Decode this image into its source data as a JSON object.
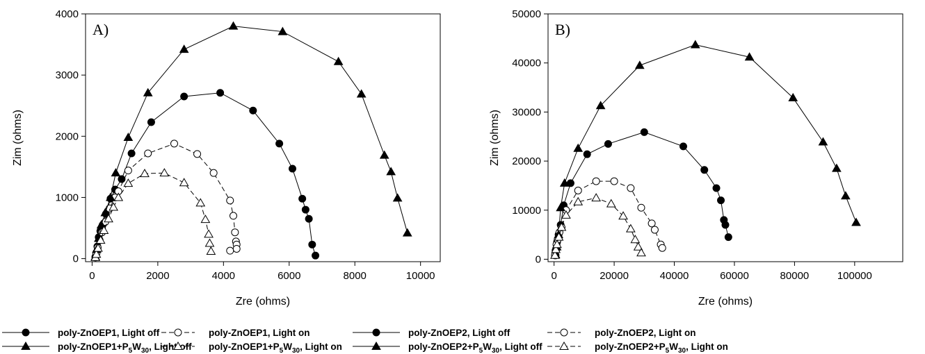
{
  "chart_data": [
    {
      "type": "line",
      "panel_label": "A)",
      "xlabel": "Zre (ohms)",
      "ylabel": "Zim (ohms)",
      "xlim": [
        -200,
        10600
      ],
      "ylim": [
        -50,
        4000
      ],
      "xticks": [
        0,
        2000,
        4000,
        6000,
        8000,
        10000
      ],
      "yticks": [
        0,
        1000,
        2000,
        3000,
        4000
      ],
      "grid": false,
      "series": [
        {
          "name": "poly-ZnOEP1, Light off",
          "marker": "circle",
          "filled": true,
          "dashed": false,
          "x": [
            100,
            130,
            160,
            200,
            250,
            320,
            420,
            560,
            700,
            900,
            1200,
            1800,
            2800,
            3900,
            4900,
            5700,
            6100,
            6400,
            6500,
            6600,
            6700,
            6800
          ],
          "y": [
            30,
            100,
            200,
            350,
            450,
            550,
            730,
            980,
            1130,
            1300,
            1720,
            2230,
            2650,
            2710,
            2420,
            1880,
            1470,
            980,
            800,
            650,
            230,
            50
          ]
        },
        {
          "name": "poly-ZnOEP1, Light on",
          "marker": "circle",
          "filled": false,
          "dashed": true,
          "x": [
            100,
            130,
            170,
            230,
            300,
            400,
            530,
            700,
            800,
            1100,
            1700,
            2500,
            3200,
            3700,
            4200,
            4300,
            4350,
            4380,
            4400,
            4400,
            4200
          ],
          "y": [
            20,
            80,
            180,
            300,
            430,
            600,
            820,
            1000,
            1100,
            1440,
            1720,
            1880,
            1710,
            1400,
            950,
            700,
            430,
            280,
            230,
            160,
            130
          ]
        },
        {
          "name": "poly-ZnOEP1+P5W30, Light off",
          "marker": "triangle",
          "filled": true,
          "dashed": false,
          "x": [
            100,
            140,
            200,
            280,
            400,
            560,
            720,
            1100,
            1700,
            2800,
            4300,
            5800,
            7500,
            8200,
            8900,
            9100,
            9300,
            9600
          ],
          "y": [
            30,
            150,
            330,
            550,
            750,
            1000,
            1400,
            1980,
            2710,
            3420,
            3800,
            3710,
            3220,
            2690,
            1690,
            1420,
            990,
            420
          ]
        },
        {
          "name": "poly-ZnOEP1+P5W30, Light on",
          "marker": "triangle",
          "filled": false,
          "dashed": true,
          "x": [
            100,
            130,
            180,
            260,
            360,
            500,
            650,
            800,
            1100,
            1600,
            2200,
            2800,
            3300,
            3450,
            3550,
            3580,
            3620
          ],
          "y": [
            20,
            70,
            170,
            300,
            460,
            650,
            840,
            1000,
            1230,
            1390,
            1400,
            1240,
            910,
            640,
            400,
            250,
            120
          ]
        }
      ]
    },
    {
      "type": "line",
      "panel_label": "B)",
      "xlabel": "Zre (ohms)",
      "ylabel": "Zim (ohms)",
      "xlim": [
        -2000,
        116000
      ],
      "ylim": [
        -500,
        50000
      ],
      "xticks": [
        0,
        20000,
        40000,
        60000,
        80000,
        100000
      ],
      "yticks": [
        0,
        10000,
        20000,
        30000,
        40000,
        50000
      ],
      "grid": false,
      "series": [
        {
          "name": "poly-ZnOEP2, Light off",
          "marker": "circle",
          "filled": true,
          "dashed": false,
          "x": [
            500,
            700,
            1000,
            1500,
            2200,
            3200,
            5500,
            11000,
            18000,
            30000,
            43000,
            50000,
            54000,
            55500,
            56500,
            57000,
            58000
          ],
          "y": [
            800,
            2000,
            3500,
            5000,
            7000,
            11000,
            15500,
            21400,
            23500,
            25900,
            23000,
            18200,
            14500,
            12000,
            8000,
            7000,
            4500
          ]
        },
        {
          "name": "poly-ZnOEP2, Light on",
          "marker": "circle",
          "filled": false,
          "dashed": true,
          "x": [
            300,
            500,
            800,
            1200,
            1800,
            2500,
            4000,
            8000,
            14000,
            20000,
            25500,
            29000,
            32500,
            33500,
            35500,
            36000
          ],
          "y": [
            800,
            1800,
            3000,
            4000,
            5500,
            6500,
            10000,
            14000,
            15900,
            15900,
            14500,
            10500,
            7300,
            6000,
            3000,
            2300
          ]
        },
        {
          "name": "poly-ZnOEP2+P5W30, Light off",
          "marker": "triangle",
          "filled": true,
          "dashed": false,
          "x": [
            500,
            900,
            1500,
            2200,
            3500,
            8000,
            15500,
            28500,
            47000,
            65000,
            79500,
            89500,
            94000,
            97000,
            100500
          ],
          "y": [
            900,
            2500,
            5000,
            10500,
            15500,
            22600,
            31300,
            39500,
            43700,
            41200,
            32900,
            23900,
            18500,
            12900,
            7500
          ]
        },
        {
          "name": "poly-ZnOEP2+P5W30, Light on",
          "marker": "triangle",
          "filled": false,
          "dashed": true,
          "x": [
            300,
            600,
            1000,
            1600,
            2500,
            4000,
            8000,
            14000,
            19000,
            23000,
            25500,
            27000,
            28000,
            29000
          ],
          "y": [
            800,
            2000,
            3000,
            4500,
            6500,
            9000,
            11700,
            12500,
            11300,
            8800,
            6200,
            4000,
            2500,
            1300
          ]
        }
      ]
    }
  ],
  "legend": {
    "groups": [
      {
        "items": [
          {
            "name": "poly-ZnOEP1, Light off",
            "marker": "circle",
            "filled": true,
            "dashed": false
          },
          {
            "prefix": "poly-ZnOEP1+P",
            "sub1": "5",
            "mid": "W",
            "sub2": "30",
            "suffix": ", Light off",
            "marker": "triangle",
            "filled": true,
            "dashed": false
          }
        ]
      },
      {
        "items": [
          {
            "name": "poly-ZnOEP1, Light on",
            "marker": "circle",
            "filled": false,
            "dashed": true
          },
          {
            "prefix": "poly-ZnOEP1+P",
            "sub1": "5",
            "mid": "W",
            "sub2": "30",
            "suffix": ", Light on",
            "marker": "triangle",
            "filled": false,
            "dashed": true
          }
        ]
      },
      {
        "items": [
          {
            "name": "poly-ZnOEP2, Light off",
            "marker": "circle",
            "filled": true,
            "dashed": false
          },
          {
            "prefix": "poly-ZnOEP2+P",
            "sub1": "5",
            "mid": "W",
            "sub2": "30",
            "suffix": ", Light off",
            "marker": "triangle",
            "filled": true,
            "dashed": false
          }
        ]
      },
      {
        "items": [
          {
            "name": "poly-ZnOEP2, Light on",
            "marker": "circle",
            "filled": false,
            "dashed": true
          },
          {
            "prefix": "poly-ZnOEP2+P",
            "sub1": "5",
            "mid": "W",
            "sub2": "30",
            "suffix": ", Light on",
            "marker": "triangle",
            "filled": false,
            "dashed": true
          }
        ]
      }
    ]
  }
}
